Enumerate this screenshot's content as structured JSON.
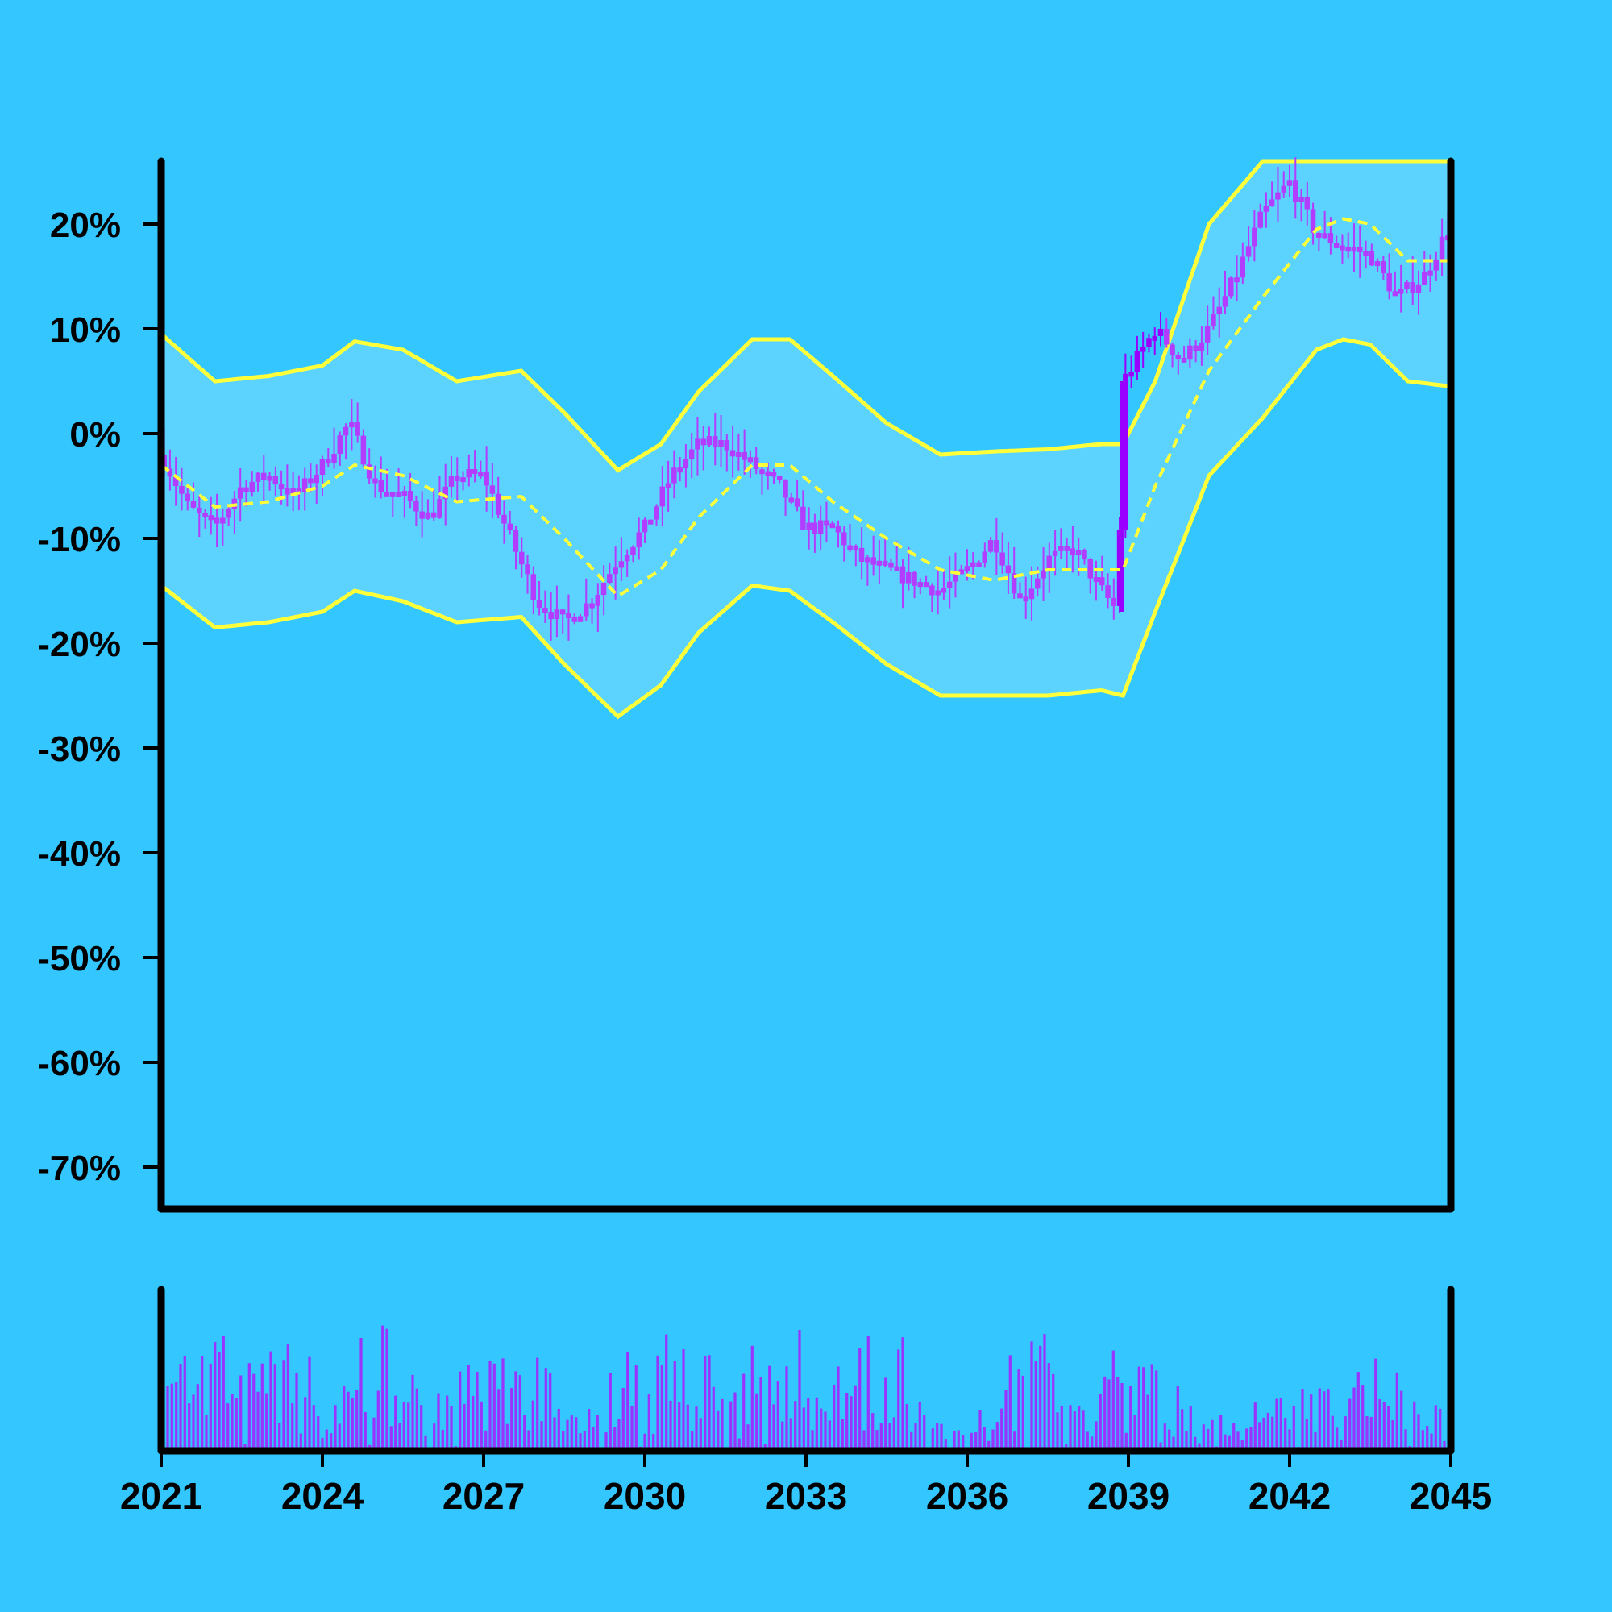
{
  "chart_data": {
    "type": "candlestick",
    "title": "",
    "xlabel": "",
    "ylabel": "",
    "x_range": [
      2021,
      2045
    ],
    "x_ticks": [
      "2021",
      "2024",
      "2027",
      "2030",
      "2033",
      "2036",
      "2039",
      "2042",
      "2045"
    ],
    "y_range_percent": [
      -74,
      26
    ],
    "y_ticks": [
      "20%",
      "10%",
      "0%",
      "-10%",
      "-20%",
      "-30%",
      "-40%",
      "-50%",
      "-60%",
      "-70%"
    ],
    "grid": false,
    "legend": "none",
    "colors": {
      "background": "#33c6ff",
      "band_fill": "#5cd2ff",
      "band_lines": "#ffff3a",
      "candles": "#b23cff",
      "spike": "#9900ff",
      "volume": "#9933ff",
      "axes": "#000000"
    },
    "price_series": {
      "name": "",
      "unit": "%",
      "points": [
        {
          "x": 2021.0,
          "y": -2
        },
        {
          "x": 2021.5,
          "y": -7
        },
        {
          "x": 2022.0,
          "y": -9
        },
        {
          "x": 2022.5,
          "y": -5
        },
        {
          "x": 2023.0,
          "y": -4
        },
        {
          "x": 2023.5,
          "y": -6
        },
        {
          "x": 2024.0,
          "y": -3
        },
        {
          "x": 2024.5,
          "y": 1
        },
        {
          "x": 2025.0,
          "y": -5
        },
        {
          "x": 2025.5,
          "y": -6
        },
        {
          "x": 2026.0,
          "y": -8
        },
        {
          "x": 2026.5,
          "y": -4
        },
        {
          "x": 2027.0,
          "y": -4
        },
        {
          "x": 2027.5,
          "y": -10
        },
        {
          "x": 2028.0,
          "y": -16
        },
        {
          "x": 2028.5,
          "y": -18
        },
        {
          "x": 2029.0,
          "y": -16
        },
        {
          "x": 2029.5,
          "y": -12
        },
        {
          "x": 2030.0,
          "y": -9
        },
        {
          "x": 2030.5,
          "y": -4
        },
        {
          "x": 2031.0,
          "y": -1
        },
        {
          "x": 2031.5,
          "y": -1
        },
        {
          "x": 2032.0,
          "y": -3
        },
        {
          "x": 2032.5,
          "y": -5
        },
        {
          "x": 2033.0,
          "y": -9
        },
        {
          "x": 2033.5,
          "y": -9
        },
        {
          "x": 2034.0,
          "y": -12
        },
        {
          "x": 2034.5,
          "y": -13
        },
        {
          "x": 2035.0,
          "y": -14
        },
        {
          "x": 2035.5,
          "y": -15
        },
        {
          "x": 2036.0,
          "y": -13
        },
        {
          "x": 2036.5,
          "y": -10
        },
        {
          "x": 2037.0,
          "y": -16
        },
        {
          "x": 2037.5,
          "y": -12
        },
        {
          "x": 2038.0,
          "y": -11
        },
        {
          "x": 2038.5,
          "y": -15
        },
        {
          "x": 2038.8,
          "y": -17
        },
        {
          "x": 2038.9,
          "y": 5
        },
        {
          "x": 2039.5,
          "y": 10
        },
        {
          "x": 2040.0,
          "y": 7
        },
        {
          "x": 2040.5,
          "y": 10
        },
        {
          "x": 2041.0,
          "y": 15
        },
        {
          "x": 2041.5,
          "y": 21
        },
        {
          "x": 2042.0,
          "y": 24
        },
        {
          "x": 2042.5,
          "y": 19
        },
        {
          "x": 2043.0,
          "y": 18
        },
        {
          "x": 2043.5,
          "y": 17
        },
        {
          "x": 2044.0,
          "y": 13
        },
        {
          "x": 2044.5,
          "y": 15
        },
        {
          "x": 2045.0,
          "y": 20
        }
      ]
    },
    "moving_average": {
      "name": "",
      "points": [
        {
          "x": 2021.0,
          "y": -3
        },
        {
          "x": 2022.0,
          "y": -7
        },
        {
          "x": 2023.0,
          "y": -6.5
        },
        {
          "x": 2024.0,
          "y": -5
        },
        {
          "x": 2024.6,
          "y": -3
        },
        {
          "x": 2025.5,
          "y": -4
        },
        {
          "x": 2026.5,
          "y": -6.5
        },
        {
          "x": 2027.7,
          "y": -6
        },
        {
          "x": 2028.5,
          "y": -10
        },
        {
          "x": 2029.5,
          "y": -15.5
        },
        {
          "x": 2030.3,
          "y": -13
        },
        {
          "x": 2031.0,
          "y": -8
        },
        {
          "x": 2032.0,
          "y": -3
        },
        {
          "x": 2032.7,
          "y": -3
        },
        {
          "x": 2033.5,
          "y": -6.5
        },
        {
          "x": 2034.5,
          "y": -10
        },
        {
          "x": 2035.5,
          "y": -13
        },
        {
          "x": 2036.5,
          "y": -14
        },
        {
          "x": 2037.5,
          "y": -13
        },
        {
          "x": 2038.5,
          "y": -13
        },
        {
          "x": 2038.9,
          "y": -13
        },
        {
          "x": 2039.5,
          "y": -5
        },
        {
          "x": 2040.5,
          "y": 6
        },
        {
          "x": 2041.5,
          "y": 13
        },
        {
          "x": 2042.5,
          "y": 19.5
        },
        {
          "x": 2043.0,
          "y": 20.5
        },
        {
          "x": 2043.5,
          "y": 20
        },
        {
          "x": 2044.2,
          "y": 16.5
        },
        {
          "x": 2045.0,
          "y": 16.5
        }
      ]
    },
    "upper_band": {
      "name": "",
      "points": [
        {
          "x": 2021.0,
          "y": 9.5
        },
        {
          "x": 2022.0,
          "y": 5
        },
        {
          "x": 2023.0,
          "y": 5.5
        },
        {
          "x": 2024.0,
          "y": 6.5
        },
        {
          "x": 2024.6,
          "y": 8.8
        },
        {
          "x": 2025.5,
          "y": 8
        },
        {
          "x": 2026.5,
          "y": 5
        },
        {
          "x": 2027.7,
          "y": 6
        },
        {
          "x": 2028.5,
          "y": 2
        },
        {
          "x": 2029.5,
          "y": -3.5
        },
        {
          "x": 2030.3,
          "y": -1
        },
        {
          "x": 2031.0,
          "y": 4
        },
        {
          "x": 2032.0,
          "y": 9
        },
        {
          "x": 2032.7,
          "y": 9
        },
        {
          "x": 2033.5,
          "y": 5.5
        },
        {
          "x": 2034.5,
          "y": 1
        },
        {
          "x": 2035.5,
          "y": -2
        },
        {
          "x": 2036.5,
          "y": -1.7
        },
        {
          "x": 2037.5,
          "y": -1.5
        },
        {
          "x": 2038.5,
          "y": -1
        },
        {
          "x": 2038.9,
          "y": -1
        },
        {
          "x": 2039.5,
          "y": 5
        },
        {
          "x": 2040.5,
          "y": 20
        },
        {
          "x": 2041.5,
          "y": 26
        },
        {
          "x": 2045.0,
          "y": 26
        }
      ]
    },
    "lower_band": {
      "name": "",
      "points": [
        {
          "x": 2021.0,
          "y": -14.5
        },
        {
          "x": 2022.0,
          "y": -18.5
        },
        {
          "x": 2023.0,
          "y": -18
        },
        {
          "x": 2024.0,
          "y": -17
        },
        {
          "x": 2024.6,
          "y": -15
        },
        {
          "x": 2025.5,
          "y": -16
        },
        {
          "x": 2026.5,
          "y": -18
        },
        {
          "x": 2027.7,
          "y": -17.5
        },
        {
          "x": 2028.5,
          "y": -22
        },
        {
          "x": 2029.5,
          "y": -27
        },
        {
          "x": 2030.3,
          "y": -24
        },
        {
          "x": 2031.0,
          "y": -19
        },
        {
          "x": 2032.0,
          "y": -14.5
        },
        {
          "x": 2032.7,
          "y": -15
        },
        {
          "x": 2033.5,
          "y": -18
        },
        {
          "x": 2034.5,
          "y": -22
        },
        {
          "x": 2035.5,
          "y": -25
        },
        {
          "x": 2036.5,
          "y": -25
        },
        {
          "x": 2037.5,
          "y": -25
        },
        {
          "x": 2038.5,
          "y": -24.5
        },
        {
          "x": 2038.9,
          "y": -25
        },
        {
          "x": 2039.5,
          "y": -17
        },
        {
          "x": 2040.5,
          "y": -4
        },
        {
          "x": 2041.5,
          "y": 1.5
        },
        {
          "x": 2042.5,
          "y": 8
        },
        {
          "x": 2043.0,
          "y": 9
        },
        {
          "x": 2043.5,
          "y": 8.5
        },
        {
          "x": 2044.2,
          "y": 5
        },
        {
          "x": 2045.0,
          "y": 4.5
        }
      ]
    },
    "volume": {
      "name": "",
      "relative_level_by_period": [
        0.45,
        0.55,
        0.5,
        0.35,
        0.6,
        0.4,
        0.55,
        0.45,
        0.2,
        0.5,
        0.55,
        0.6,
        0.6,
        0.5,
        0.55,
        0.3,
        0.2,
        0.55,
        0.35,
        0.5,
        0.4,
        0.25,
        0.25,
        0.3,
        0.45,
        0.3
      ]
    }
  }
}
